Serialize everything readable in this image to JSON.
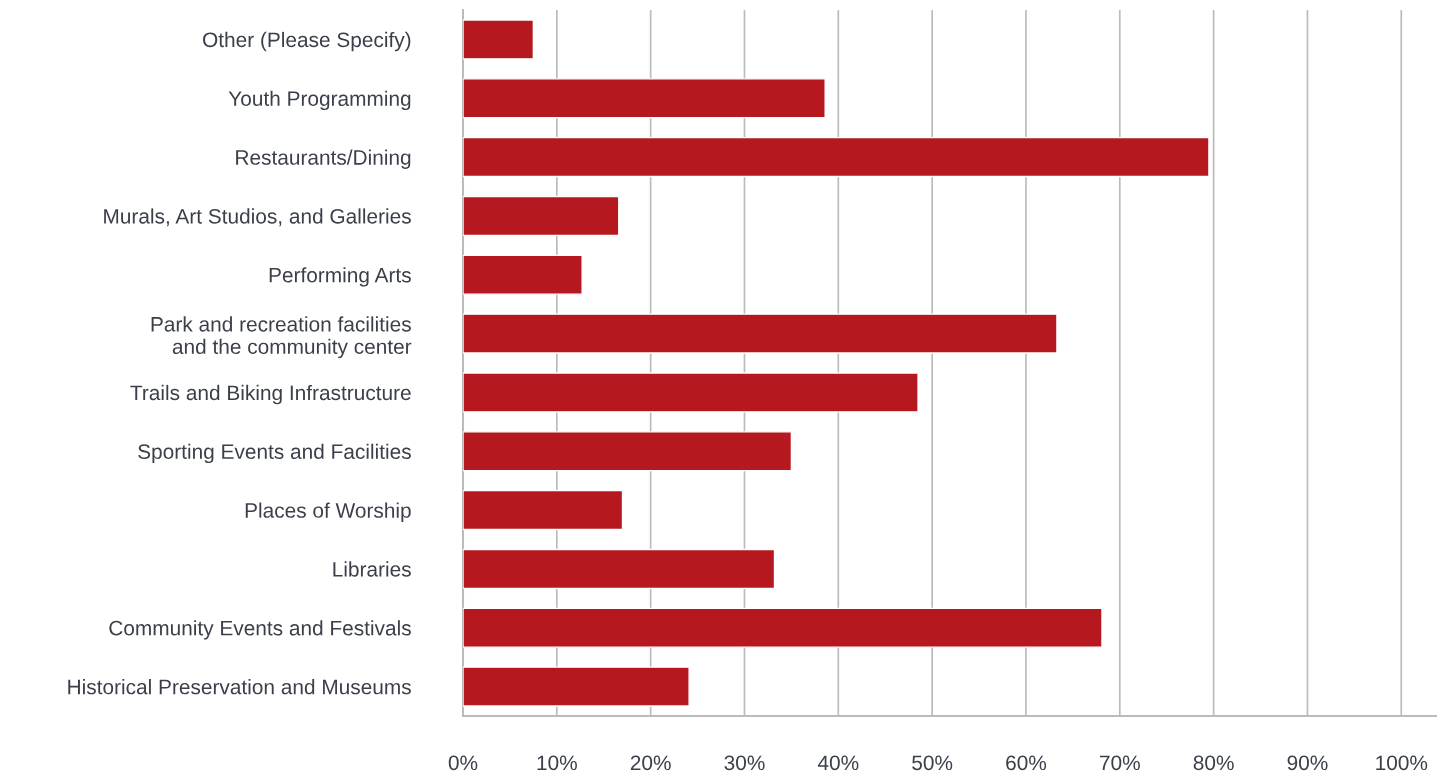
{
  "chart_data": {
    "type": "bar",
    "orientation": "horizontal",
    "categories": [
      "Other (Please Specify)",
      "Youth Programming",
      "Restaurants/Dining",
      "Murals, Art Studios, and Galleries",
      "Performing Arts",
      "Park and recreation facilities\nand the community center",
      "Trails and Biking Infrastructure",
      "Sporting Events and Facilities",
      "Places of Worship",
      "Libraries",
      "Community Events and Festivals",
      "Historical Preservation and Museums"
    ],
    "values": [
      7.5,
      38.6,
      79.5,
      16.6,
      12.7,
      63.3,
      48.5,
      35.0,
      17.0,
      33.2,
      68.1,
      24.1
    ],
    "color": "#b5181e",
    "xlim": [
      0,
      103.7
    ],
    "xticks": [
      {
        "value": 0,
        "label": "0%"
      },
      {
        "value": 10,
        "label": "10%"
      },
      {
        "value": 20,
        "label": "20%"
      },
      {
        "value": 30,
        "label": "30%"
      },
      {
        "value": 40,
        "label": "40%"
      },
      {
        "value": 50,
        "label": "50%"
      },
      {
        "value": 60,
        "label": "60%"
      },
      {
        "value": 70,
        "label": "70%"
      },
      {
        "value": 80,
        "label": "80%"
      },
      {
        "value": 90,
        "label": "90%"
      },
      {
        "value": 100,
        "label": "100%"
      }
    ],
    "grid": "x",
    "legend": false
  }
}
